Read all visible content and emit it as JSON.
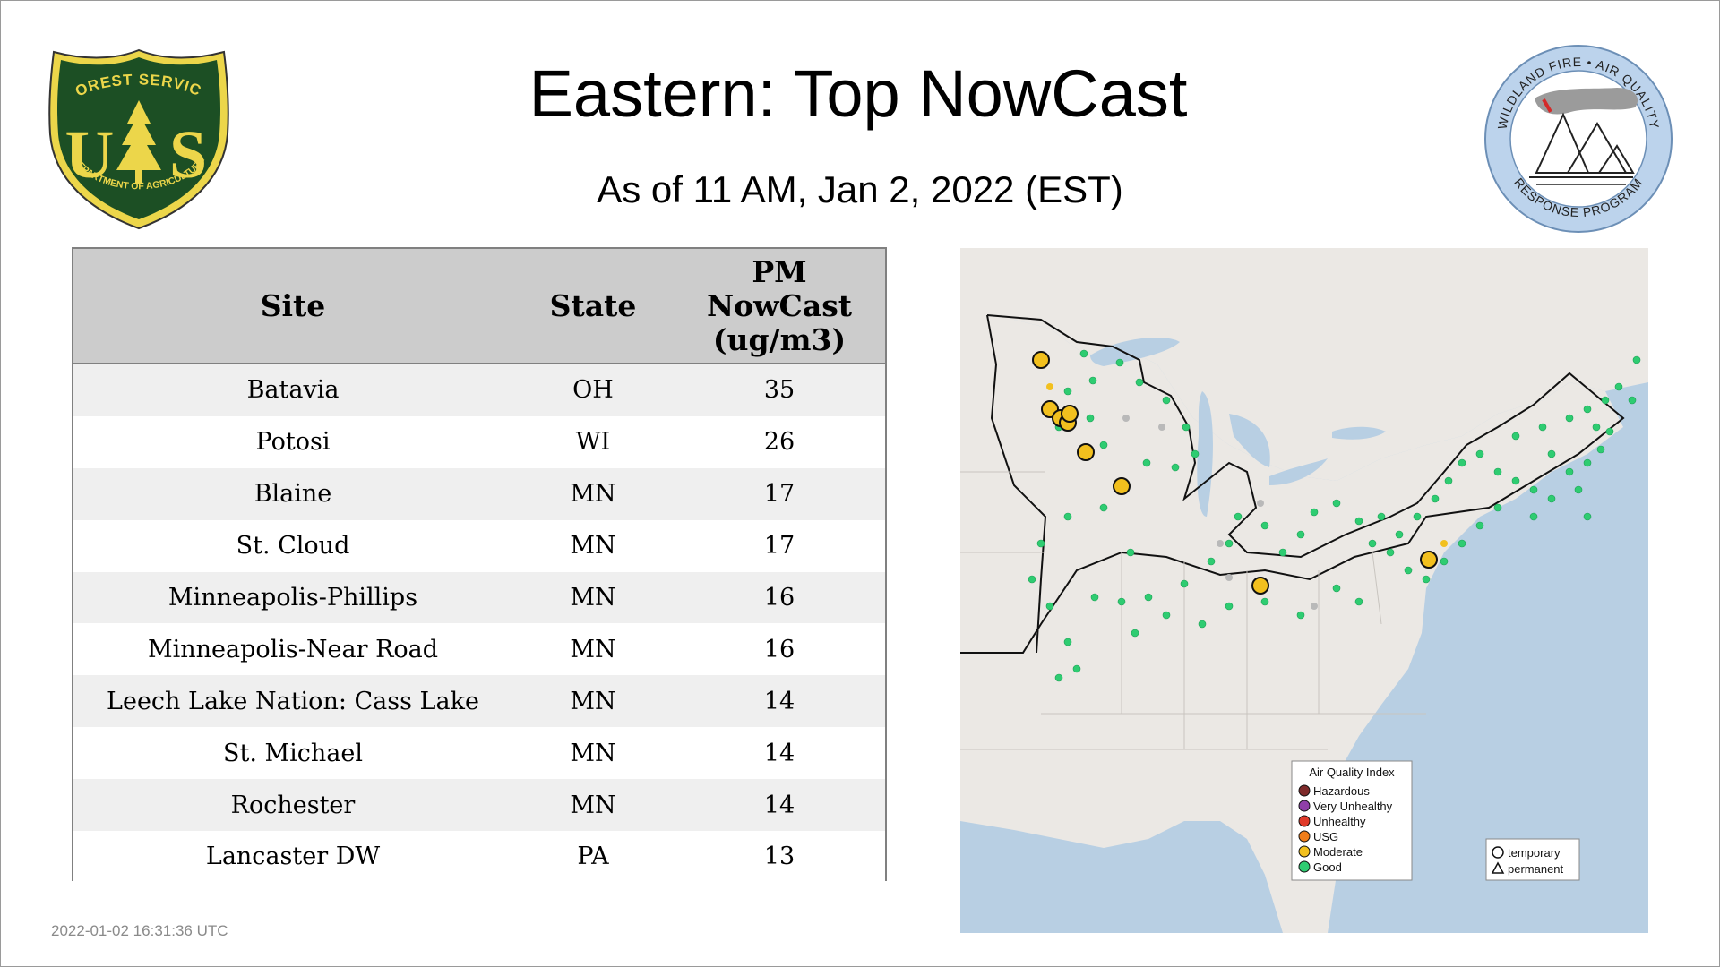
{
  "header": {
    "title": "Eastern: Top NowCast",
    "subtitle": "As of 11 AM, Jan  2, 2022 (EST)"
  },
  "logos": {
    "forest_service": {
      "top_text": "FOREST SERVICE",
      "letters": "US",
      "bottom_text": "DEPARTMENT OF AGRICULTURE"
    },
    "wildland_fire": {
      "top_text": "WILDLAND FIRE • AIR QUALITY",
      "bottom_text": "RESPONSE PROGRAM"
    }
  },
  "table": {
    "headers": [
      "Site",
      "State",
      "PM",
      "NowCast",
      "(ug/m3)"
    ],
    "rows": [
      {
        "site": "Batavia",
        "state": "OH",
        "value": "35"
      },
      {
        "site": "Potosi",
        "state": "WI",
        "value": "26"
      },
      {
        "site": "Blaine",
        "state": "MN",
        "value": "17"
      },
      {
        "site": "St. Cloud",
        "state": "MN",
        "value": "17"
      },
      {
        "site": "Minneapolis-Phillips",
        "state": "MN",
        "value": "16"
      },
      {
        "site": "Minneapolis-Near Road",
        "state": "MN",
        "value": "16"
      },
      {
        "site": "Leech Lake Nation: Cass Lake",
        "state": "MN",
        "value": "14"
      },
      {
        "site": "St. Michael",
        "state": "MN",
        "value": "14"
      },
      {
        "site": "Rochester",
        "state": "MN",
        "value": "14"
      },
      {
        "site": "Lancaster DW",
        "state": "PA",
        "value": "13"
      }
    ]
  },
  "map": {
    "legend": {
      "title": "Air Quality Index",
      "items": [
        {
          "label": "Hazardous",
          "color": "#7e2a2a"
        },
        {
          "label": "Very Unhealthy",
          "color": "#8f3fa8"
        },
        {
          "label": "Unhealthy",
          "color": "#e03a2a"
        },
        {
          "label": "USG",
          "color": "#ef7d1a"
        },
        {
          "label": "Moderate",
          "color": "#f2c01e"
        },
        {
          "label": "Good",
          "color": "#2ecc71"
        }
      ]
    },
    "shape_legend": {
      "temporary": "temporary",
      "permanent": "permanent"
    },
    "colors": {
      "water": "#b8cfe3",
      "land": "#ebe8e4",
      "good": "#2ecc71",
      "moderate": "#f2c01e",
      "nodata": "#b9b9b9"
    }
  },
  "footer": {
    "timestamp": "2022-01-02 16:31:36 UTC"
  }
}
